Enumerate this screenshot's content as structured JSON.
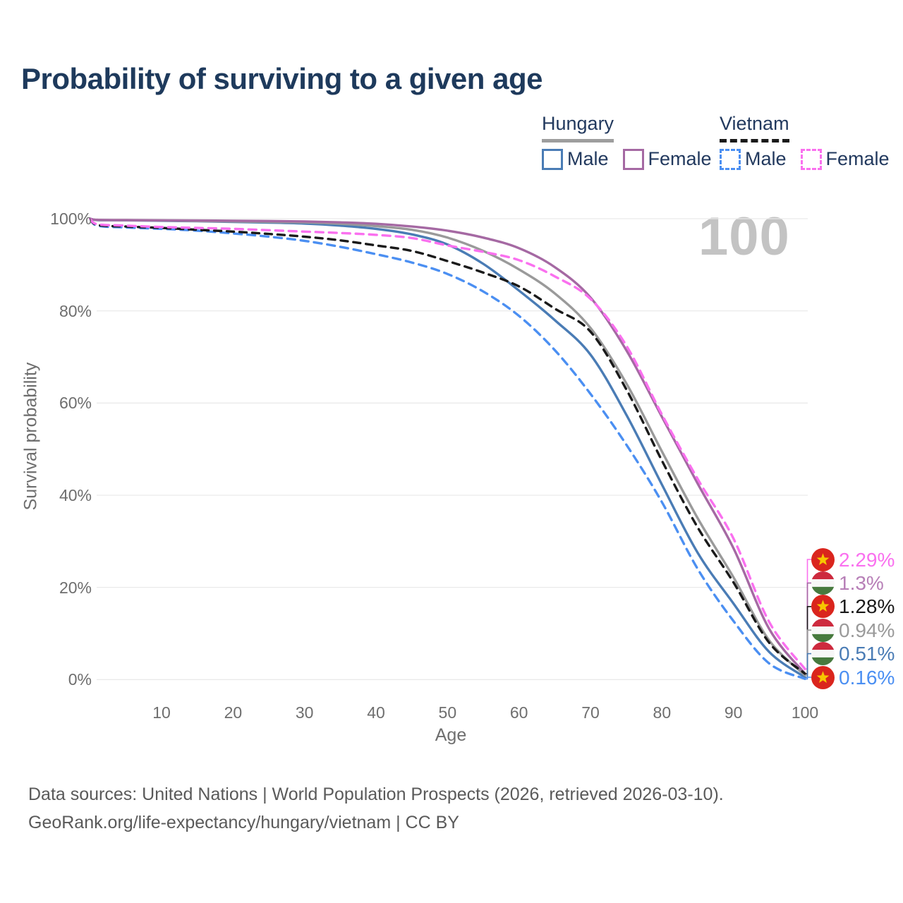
{
  "title": "Probability of surviving to a given age",
  "watermark": "100",
  "legend": {
    "groups": [
      {
        "country": "Hungary",
        "style": "solid",
        "items": [
          {
            "label": "Male"
          },
          {
            "label": "Female"
          }
        ]
      },
      {
        "country": "Vietnam",
        "style": "dashed",
        "items": [
          {
            "label": "Male"
          },
          {
            "label": "Female"
          }
        ]
      }
    ]
  },
  "chart_data": {
    "type": "line",
    "title": "Probability of surviving to a given age",
    "xlabel": "Age",
    "ylabel": "Survival probability",
    "xlim": [
      0,
      100
    ],
    "ylim": [
      0,
      100
    ],
    "grid": "horizontal",
    "x_ticks": [
      10,
      20,
      30,
      40,
      50,
      60,
      70,
      80,
      90,
      100
    ],
    "y_ticks": [
      0,
      20,
      40,
      60,
      80,
      100
    ],
    "y_tick_suffix": "%",
    "ages": [
      0,
      1,
      5,
      10,
      15,
      20,
      25,
      30,
      35,
      40,
      45,
      50,
      55,
      60,
      65,
      70,
      75,
      80,
      85,
      90,
      95,
      100
    ],
    "series": [
      {
        "id": "hungary-male",
        "country": "Hungary",
        "sex": "Male",
        "style": "solid",
        "color": "#4a7cb5",
        "label_color": "#4a7cb5",
        "flag": "hu",
        "end_label": "0.51%",
        "end_value": 0.51,
        "values": [
          100,
          99.7,
          99.65,
          99.55,
          99.45,
          99.3,
          99.15,
          98.95,
          98.5,
          97.8,
          96.6,
          94.4,
          90.2,
          84.4,
          78.0,
          70.5,
          57.5,
          42.3,
          27.5,
          16.5,
          6.0,
          0.51
        ]
      },
      {
        "id": "hungary-total",
        "country": "Hungary",
        "sex": "Both",
        "style": "solid",
        "color": "#9a9a9a",
        "label_color": "#9a9a9a",
        "flag": "hu",
        "end_label": "0.94%",
        "end_value": 0.94,
        "values": [
          100,
          99.72,
          99.68,
          99.6,
          99.5,
          99.4,
          99.3,
          99.2,
          98.9,
          98.4,
          97.6,
          95.9,
          93.0,
          89.0,
          83.8,
          76.3,
          64.3,
          49.5,
          35.0,
          22.2,
          8.5,
          0.94
        ]
      },
      {
        "id": "hungary-female",
        "country": "Hungary",
        "sex": "Female",
        "style": "solid",
        "color": "#a569a3",
        "label_color": "#b77fb7",
        "flag": "hu",
        "end_label": "1.3%",
        "end_value": 1.3,
        "values": [
          100,
          99.75,
          99.7,
          99.65,
          99.6,
          99.55,
          99.5,
          99.4,
          99.2,
          98.9,
          98.3,
          97.4,
          95.9,
          93.6,
          89.5,
          82.9,
          71.5,
          57.0,
          42.5,
          28.5,
          11.0,
          1.3
        ]
      },
      {
        "id": "vietnam-male",
        "country": "Vietnam",
        "sex": "Male",
        "style": "dashed",
        "color": "#4b8ff2",
        "label_color": "#4b8ff2",
        "flag": "vn",
        "end_label": "0.16%",
        "end_value": 0.16,
        "values": [
          100,
          98.5,
          98.1,
          97.8,
          97.4,
          96.8,
          96.1,
          95.2,
          93.9,
          92.3,
          90.5,
          88.0,
          84.2,
          78.9,
          71.5,
          62.0,
          51.0,
          38.5,
          24.0,
          12.7,
          3.5,
          0.16
        ]
      },
      {
        "id": "vietnam-total",
        "country": "Vietnam",
        "sex": "Both",
        "style": "dashed",
        "color": "#1a1a1a",
        "label_color": "#1a1a1a",
        "flag": "vn",
        "end_label": "1.28%",
        "end_value": 1.28,
        "values": [
          100,
          98.65,
          98.3,
          98.0,
          97.6,
          97.2,
          96.7,
          96.1,
          95.3,
          94.2,
          93.0,
          90.8,
          88.3,
          85.3,
          80.5,
          75.5,
          63.0,
          47.5,
          33.0,
          21.1,
          8.0,
          1.28
        ]
      },
      {
        "id": "vietnam-female",
        "country": "Vietnam",
        "sex": "Female",
        "style": "dashed",
        "color": "#fa70ef",
        "label_color": "#fa70ef",
        "flag": "vn",
        "end_label": "2.29%",
        "end_value": 2.29,
        "values": [
          100,
          98.8,
          98.5,
          98.2,
          98.0,
          97.8,
          97.5,
          97.2,
          96.9,
          96.5,
          95.8,
          94.2,
          92.8,
          91.0,
          87.5,
          82.6,
          72.5,
          57.5,
          43.5,
          30.6,
          12.5,
          2.29
        ]
      }
    ],
    "colors": {
      "hungary_underline": "#9e9e9e",
      "vietnam_underline": "#1a1a1a",
      "grid": "#eaeaea",
      "vn_flag_red": "#da251d",
      "vn_flag_star": "#f7c600",
      "hu_flag_red": "#cd2a3e",
      "hu_flag_white": "#f7f7f7",
      "hu_flag_green": "#477a3e"
    }
  },
  "footer": {
    "line1": "Data sources: United Nations | World Population Prospects (2026, retrieved 2026-03-10).",
    "line2": "GeoRank.org/life-expectancy/hungary/vietnam | CC BY"
  }
}
